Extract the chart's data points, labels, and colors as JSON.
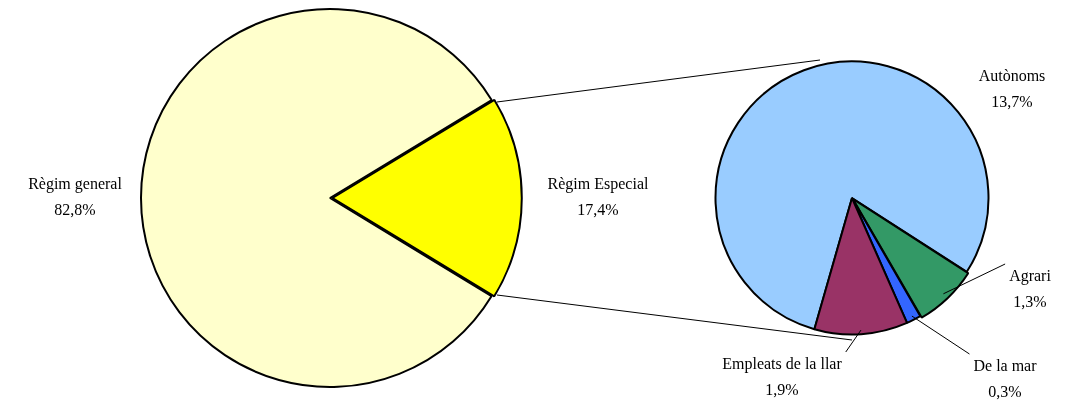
{
  "chart_data": [
    {
      "type": "pie",
      "categories": [
        "Règim general",
        "Règim Especial"
      ],
      "values": [
        82.8,
        17.4
      ],
      "colors": [
        "#ffffcc",
        "#ffff00"
      ],
      "value_labels": [
        "82,8%",
        "17,4%"
      ]
    },
    {
      "type": "pie",
      "categories": [
        "Autònoms",
        "Agrari",
        "De la mar",
        "Empleats de la llar"
      ],
      "values": [
        13.7,
        1.3,
        0.3,
        1.9
      ],
      "colors": [
        "#99ccff",
        "#339966",
        "#3366ff",
        "#993366"
      ],
      "value_labels": [
        "13,7%",
        "1,3%",
        "0,3%",
        "1,9%"
      ]
    }
  ]
}
